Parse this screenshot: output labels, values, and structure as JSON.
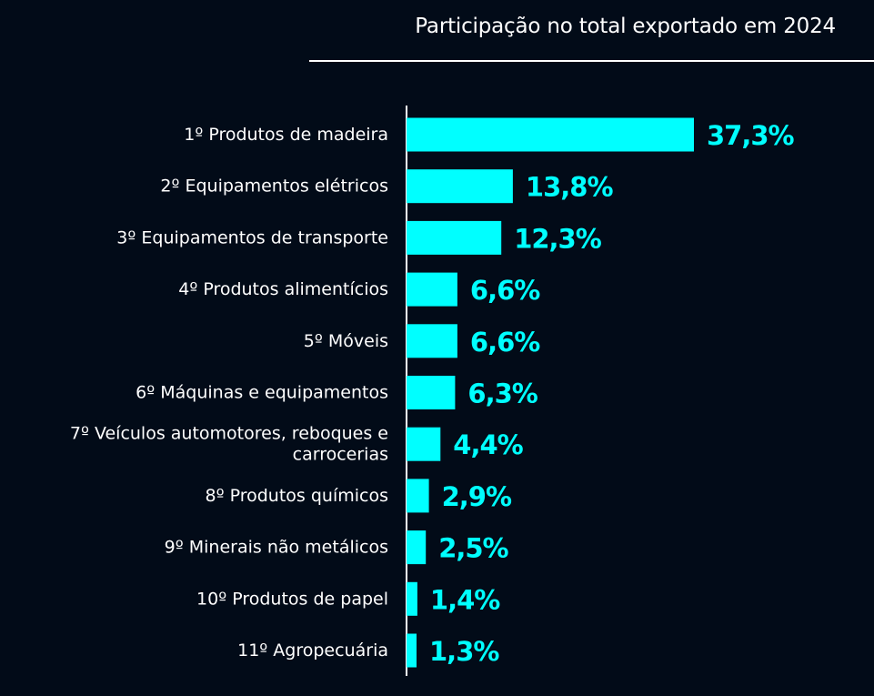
{
  "chart_data": {
    "type": "bar",
    "orientation": "horizontal",
    "title": "Participação no total exportado em 2024",
    "categories": [
      "1º Produtos de madeira",
      "2º Equipamentos elétricos",
      "3º Equipamentos de transporte",
      "4º Produtos alimentícios",
      "5º Móveis",
      "6º Máquinas e equipamentos",
      "7º Veículos automotores, reboques e carrocerias",
      "8º Produtos químicos",
      "9º Minerais não metálicos",
      "10º Produtos de papel",
      "11º Agropecuária"
    ],
    "values": [
      37.3,
      13.8,
      12.3,
      6.6,
      6.6,
      6.3,
      4.4,
      2.9,
      2.5,
      1.4,
      1.3
    ],
    "value_labels": [
      "37,3%",
      "13,8%",
      "12,3%",
      "6,6%",
      "6,6%",
      "6,3%",
      "4,4%",
      "2,9%",
      "2,5%",
      "1,4%",
      "1,3%"
    ],
    "unit": "%",
    "xlim": [
      0,
      37.3
    ],
    "grid": false,
    "legend": "none",
    "colors": {
      "background": "#020b18",
      "bar": "#00ffff",
      "text": "#ffffff",
      "value_label": "#00ffff",
      "axis": "#ffffff"
    }
  }
}
